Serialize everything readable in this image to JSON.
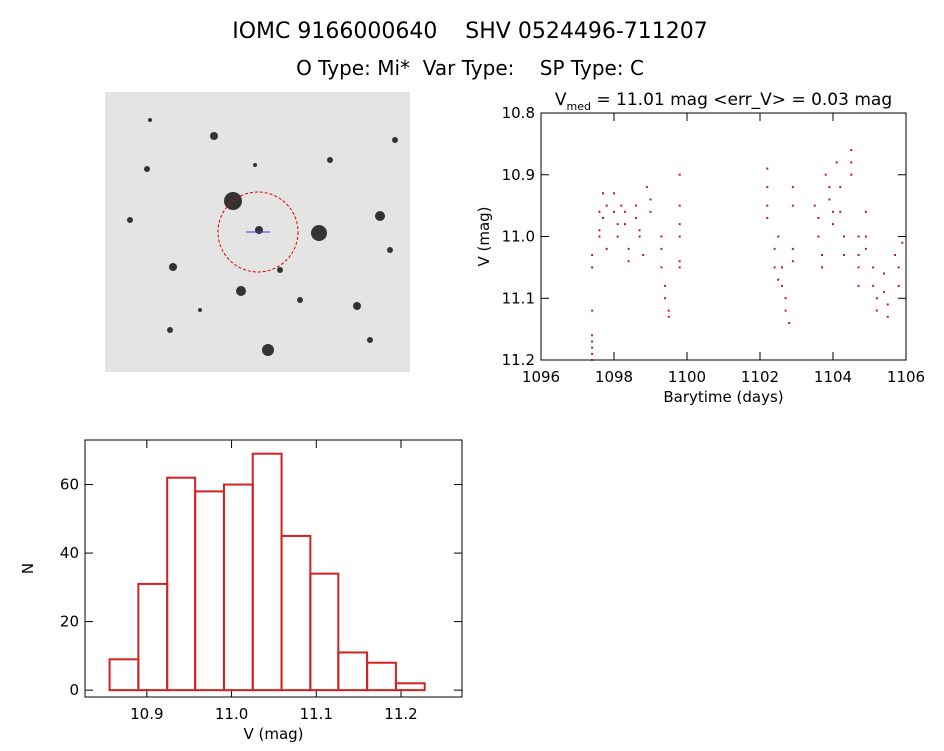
{
  "header": {
    "title": "IOMC 9166000640    SHV 0524496-711207",
    "subtitle": "O Type: Mi*  Var Type:    SP Type: C"
  },
  "chart_data": [
    {
      "type": "scatter",
      "title": "V",
      "title_subscript": "med",
      "title_rest": " = 11.01 mag <err_V> = 0.03 mag",
      "x_label": "Barytime (days)",
      "y_label": "V (mag)",
      "color": "#c0181e",
      "xlim": [
        1096,
        1106
      ],
      "xticks": [
        1096,
        1098,
        1100,
        1102,
        1104,
        1106
      ],
      "ylim": [
        10.8,
        11.2
      ],
      "yticks": [
        10.8,
        10.9,
        {
          "value": 11,
          "label": "11.0"
        },
        11.1,
        11.2
      ],
      "y_inverted": true,
      "x": [
        1097.4,
        1097.4,
        1097.4,
        1097.4,
        1097.4,
        1097.4,
        1097.4,
        1097.4,
        1097.6,
        1097.6,
        1097.6,
        1097.7,
        1097.7,
        1097.8,
        1097.8,
        1098.0,
        1098.0,
        1098.1,
        1098.1,
        1098.2,
        1098.3,
        1098.3,
        1098.4,
        1098.4,
        1098.6,
        1098.6,
        1098.7,
        1098.7,
        1098.8,
        1098.9,
        1099.0,
        1099.0,
        1099.3,
        1099.3,
        1099.4,
        1099.4,
        1099.5,
        1099.5,
        1099.3,
        1099.8,
        1099.8,
        1099.8,
        1099.8,
        1099.8,
        1099.8,
        1102.2,
        1102.2,
        1102.2,
        1102.2,
        1102.4,
        1102.4,
        1102.5,
        1102.5,
        1102.6,
        1102.7,
        1102.7,
        1102.8,
        1102.6,
        1102.9,
        1102.9,
        1102.9,
        1102.9,
        1103.5,
        1103.6,
        1103.6,
        1103.7,
        1103.7,
        1103.8,
        1103.9,
        1103.9,
        1104.0,
        1104.0,
        1104.1,
        1104.2,
        1104.2,
        1104.3,
        1104.3,
        1104.5,
        1104.5,
        1104.5,
        1104.7,
        1104.7,
        1104.7,
        1104.7,
        1104.9,
        1104.9,
        1104.9,
        1105.1,
        1105.1,
        1105.2,
        1105.2,
        1105.4,
        1105.4,
        1105.5,
        1105.5,
        1105.7,
        1105.8,
        1105.8,
        1105.9
      ],
      "values": [
        11.03,
        11.05,
        11.12,
        11.16,
        11.17,
        11.18,
        11.19,
        11.2,
        10.96,
        10.99,
        11.0,
        10.97,
        10.93,
        10.95,
        11.02,
        10.93,
        10.96,
        10.98,
        11.0,
        10.95,
        10.96,
        10.98,
        11.02,
        11.04,
        10.95,
        10.97,
        10.99,
        11.0,
        11.03,
        10.92,
        10.94,
        10.96,
        11.0,
        11.05,
        11.08,
        11.1,
        11.12,
        11.13,
        11.02,
        10.9,
        10.95,
        10.98,
        11.0,
        11.04,
        11.05,
        10.89,
        10.92,
        10.95,
        10.97,
        11.02,
        11.05,
        11.07,
        11.0,
        11.08,
        11.1,
        11.12,
        11.14,
        11.05,
        10.92,
        10.95,
        11.02,
        11.04,
        10.95,
        10.97,
        11.0,
        11.03,
        11.05,
        10.9,
        10.92,
        10.94,
        10.96,
        10.98,
        10.88,
        10.92,
        10.96,
        11.0,
        11.03,
        10.86,
        10.88,
        10.9,
        11.0,
        11.03,
        11.05,
        11.08,
        10.96,
        11.0,
        11.02,
        11.05,
        11.08,
        11.1,
        11.12,
        11.06,
        11.09,
        11.11,
        11.13,
        11.03,
        11.05,
        11.08,
        11.01
      ]
    },
    {
      "type": "histogram",
      "x_label": "V (mag)",
      "y_label": "N",
      "color": "#d42020",
      "xlim": [
        10.827,
        11.272
      ],
      "xticks": [
        10.9,
        {
          "value": 11,
          "label": "11.0"
        },
        11.1,
        11.2
      ],
      "ylim": [
        -2,
        73
      ],
      "yticks": [
        0,
        20,
        40,
        60
      ],
      "bins": [
        10.856,
        10.89,
        10.924,
        10.957,
        10.991,
        11.025,
        11.059,
        11.093,
        11.126,
        11.16,
        11.194,
        11.228
      ],
      "values": [
        9,
        31,
        62,
        58,
        60,
        69,
        45,
        34,
        11,
        8,
        2
      ]
    }
  ]
}
